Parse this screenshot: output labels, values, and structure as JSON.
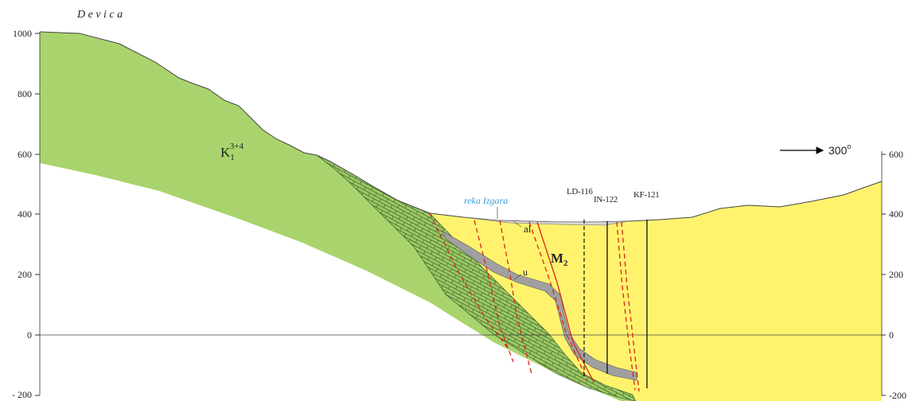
{
  "title": "D e v i c a",
  "left_axis": {
    "ticks": [
      "1000",
      "800",
      "600",
      "400",
      "200",
      "0",
      "- 200"
    ]
  },
  "right_axis": {
    "ticks": [
      "600",
      "400",
      "200",
      "0",
      "-200"
    ]
  },
  "orientation": {
    "label": "300",
    "degree": "o",
    "icon": "right-arrow-icon"
  },
  "river": {
    "label": "reka Izgara",
    "color": "#3a9fd8"
  },
  "units": {
    "cretaceous": {
      "base": "K",
      "sub": "1",
      "sup": "3+4",
      "color": "#a9d46d"
    },
    "miocene": {
      "base": "M",
      "sub": "2",
      "color": "#fff36e"
    },
    "alluvium": {
      "label": "al"
    },
    "coal": {
      "label": "u",
      "color": "#a0a0a0"
    }
  },
  "boreholes": [
    "LD-116",
    "IN-122",
    "KF-121"
  ],
  "colors": {
    "fault": "#d9241c",
    "limestone": "#8fbc5a"
  }
}
